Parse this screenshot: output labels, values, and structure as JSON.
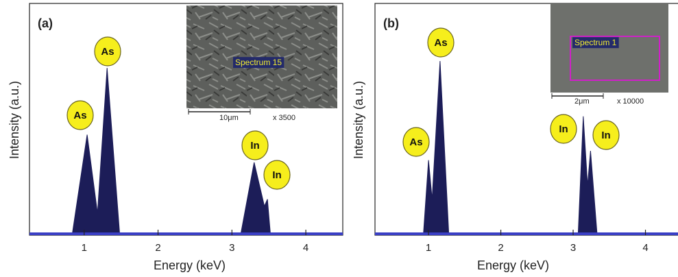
{
  "chart_data": [
    {
      "type": "area",
      "title": "(a)",
      "x_label": "Energy (keV)",
      "y_label": "Intensity (a.u.)",
      "x": [
        0.26,
        0.84,
        1.04,
        1.18,
        1.31,
        1.48,
        3.12,
        3.3,
        3.44,
        3.48,
        3.52,
        4.5
      ],
      "values": [
        0,
        0,
        43,
        9,
        72,
        0,
        0,
        31,
        12,
        15,
        0,
        0
      ],
      "color": "#1c1d58",
      "xlim": [
        0.26,
        4.5
      ],
      "xticks": [
        1,
        2,
        3,
        4
      ],
      "ylim": [
        0,
        100
      ],
      "annotations": [
        "As",
        "As",
        "In",
        "In"
      ],
      "inset": {
        "label": "Spectrum 15",
        "scale_bar": "10μm",
        "magnification": "x 3500"
      }
    },
    {
      "type": "area",
      "title": "(b)",
      "x_label": "Energy (keV)",
      "y_label": "Intensity (a.u.)",
      "x": [
        0.26,
        0.93,
        1.0,
        1.05,
        1.16,
        1.28,
        3.07,
        3.14,
        3.2,
        3.24,
        3.33,
        4.45
      ],
      "values": [
        0,
        0,
        32,
        15,
        75,
        0,
        0,
        51,
        21,
        36,
        0,
        0
      ],
      "color": "#1c1d58",
      "xlim": [
        0.26,
        4.45
      ],
      "xticks": [
        1,
        2,
        3,
        4
      ],
      "ylim": [
        0,
        100
      ],
      "annotations": [
        "As",
        "As",
        "In",
        "In"
      ],
      "inset": {
        "label": "Spectrum 1",
        "scale_bar": "2μm",
        "magnification": "x 10000"
      }
    }
  ]
}
